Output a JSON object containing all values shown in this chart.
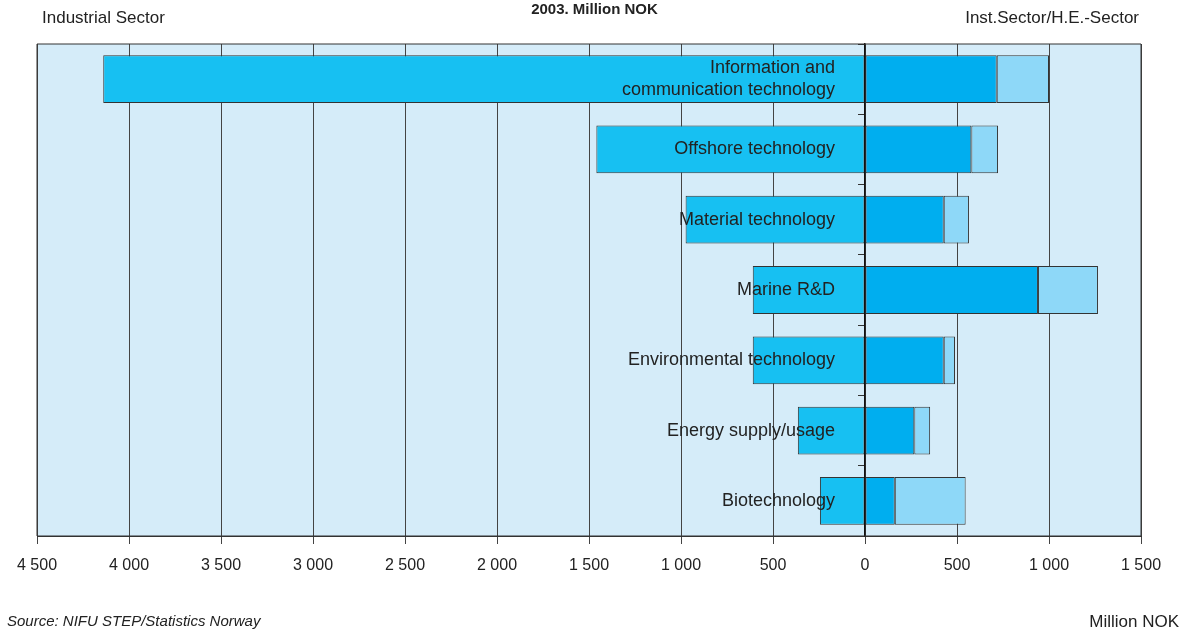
{
  "chart_data": {
    "type": "bar",
    "orientation": "horizontal",
    "stacked": true,
    "title": "2003. Million NOK",
    "xlabel": "Million NOK",
    "categories": [
      "Information and communication technology",
      "Offshore technology",
      "Material technology",
      "Marine R&D",
      "Environmental technology",
      "Energy supply/usage",
      "Biotechnology"
    ],
    "series": [
      {
        "color": "#17c0f2",
        "values": [
          -4140,
          -1460,
          -975,
          -610,
          -610,
          -365,
          -245
        ]
      },
      {
        "color": "#00aeef",
        "values": [
          716,
          578,
          428,
          940,
          428,
          268,
          162
        ]
      },
      {
        "color": "#8ed8f8",
        "values": [
          284,
          145,
          137,
          326,
          61,
          86,
          385
        ]
      }
    ],
    "xlim": [
      -4500,
      1500
    ],
    "xticks": [
      {
        "value": -4500,
        "label": "4 500"
      },
      {
        "value": -4000,
        "label": "4 000"
      },
      {
        "value": -3500,
        "label": "3 500"
      },
      {
        "value": -3000,
        "label": "3 000"
      },
      {
        "value": -2500,
        "label": "2 500"
      },
      {
        "value": -2000,
        "label": "2 000"
      },
      {
        "value": -1500,
        "label": "1 500"
      },
      {
        "value": -1000,
        "label": "1 000"
      },
      {
        "value": -500,
        "label": "500"
      },
      0,
      500,
      {
        "value": 1000,
        "label": "1 000"
      },
      {
        "value": 1500,
        "label": "1 500"
      }
    ],
    "grid": "x",
    "legend": false,
    "annotations": [
      "Industrial Sector",
      "Inst.Sector/H.E.-Sector",
      "Source: NIFU STEP/Statistics Norway"
    ]
  }
}
